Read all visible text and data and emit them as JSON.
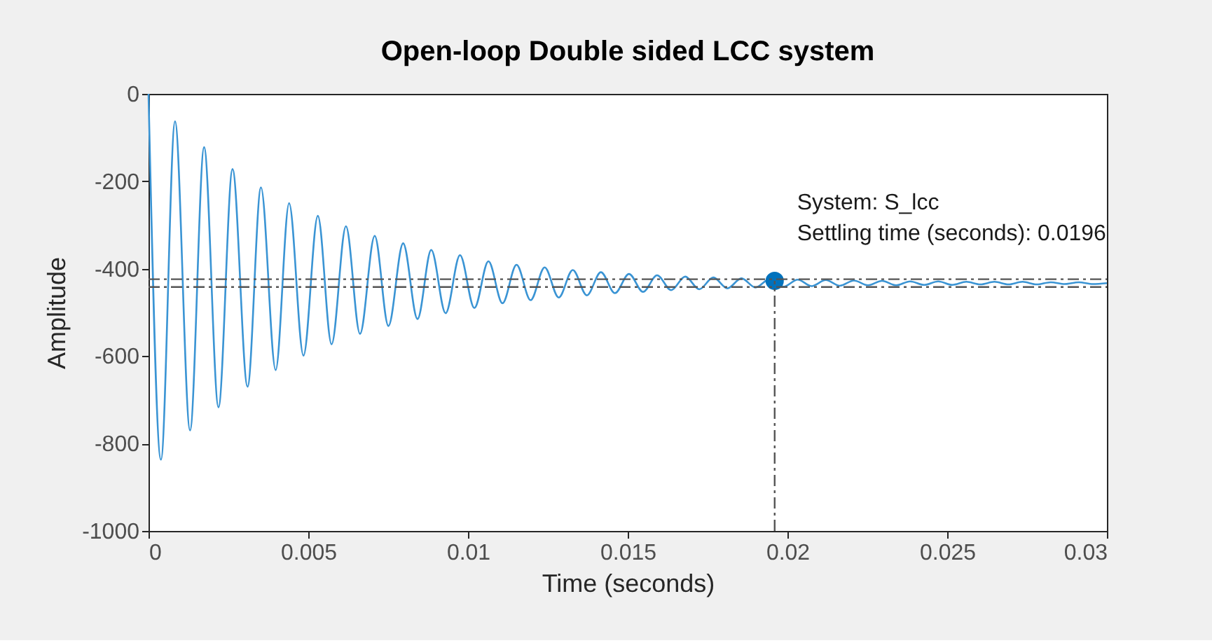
{
  "chart_data": {
    "type": "line",
    "title": "Open-loop Double sided LCC system",
    "xlabel": "Time (seconds)",
    "ylabel": "Amplitude",
    "xlim": [
      0,
      0.03
    ],
    "xticks": [
      0,
      0.005,
      0.01,
      0.015,
      0.02,
      0.025,
      0.03
    ],
    "ylim": [
      -1000,
      0
    ],
    "yticks": [
      -1000,
      -800,
      -600,
      -400,
      -200,
      0
    ],
    "grid": false,
    "series": [
      {
        "color": "#3a94d4",
        "x": [
          0,
          0.00039,
          0.00083,
          0.0013,
          0.00174,
          0.00219,
          0.00263,
          0.0031,
          0.00352,
          0.00398,
          0.0044,
          0.00485,
          0.0053,
          0.00573,
          0.00618,
          0.00662,
          0.00708,
          0.00751,
          0.00797,
          0.00842,
          0.00885,
          0.0093,
          0.00975,
          0.0102,
          0.01064,
          0.01108,
          0.01152,
          0.01196,
          0.0124,
          0.01284,
          0.01328,
          0.01372,
          0.01416,
          0.0146,
          0.01504,
          0.01548,
          0.01592,
          0.01636,
          0.0168,
          0.01724,
          0.01768,
          0.01812,
          0.01856,
          0.019,
          0.01944,
          0.01988,
          0.02032,
          0.02076,
          0.0212,
          0.02164,
          0.02208,
          0.02252,
          0.02296,
          0.0234,
          0.02384,
          0.02428,
          0.02472,
          0.02516,
          0.0256,
          0.02604,
          0.02648,
          0.02692,
          0.02736,
          0.0278,
          0.02824,
          0.02868,
          0.02912,
          0.02956,
          0.03
        ],
        "values": [
          0,
          -837,
          -63,
          -770,
          -122,
          -717,
          -172,
          -670,
          -214,
          -632,
          -250,
          -599,
          -279,
          -573,
          -303,
          -549,
          -325,
          -531,
          -342,
          -515,
          -357,
          -502,
          -369,
          -490,
          -383,
          -479,
          -391,
          -472,
          -397,
          -466,
          -403,
          -461,
          -408,
          -456,
          -412,
          -453,
          -415,
          -449,
          -418,
          -447,
          -420,
          -445,
          -422,
          -443,
          -424,
          -441,
          -425,
          -440,
          -426,
          -439,
          -427,
          -438,
          -428,
          -438,
          -429,
          -437,
          -429,
          -437,
          -430,
          -436,
          -430,
          -436,
          -430,
          -436,
          -431,
          -435,
          -431,
          -435,
          -433
        ]
      },
      {
        "type": "scatter",
        "color": "#0072bd",
        "marker": "circle",
        "x": [
          0.0196
        ],
        "values": [
          -428
        ]
      }
    ],
    "ref_lines": [
      {
        "axis": "y",
        "value": -424,
        "color": "#555555",
        "line_style": "dashdot"
      },
      {
        "axis": "y",
        "value": -442,
        "color": "#555555",
        "line_style": "dashdot"
      },
      {
        "axis": "x",
        "value": 0.0196,
        "color": "#555555",
        "line_style": "dashdot"
      }
    ],
    "annotations": [
      {
        "text": "System: S_lcc\nSettling time (seconds): 0.0196",
        "x": 0.0196,
        "y": -428
      }
    ]
  }
}
